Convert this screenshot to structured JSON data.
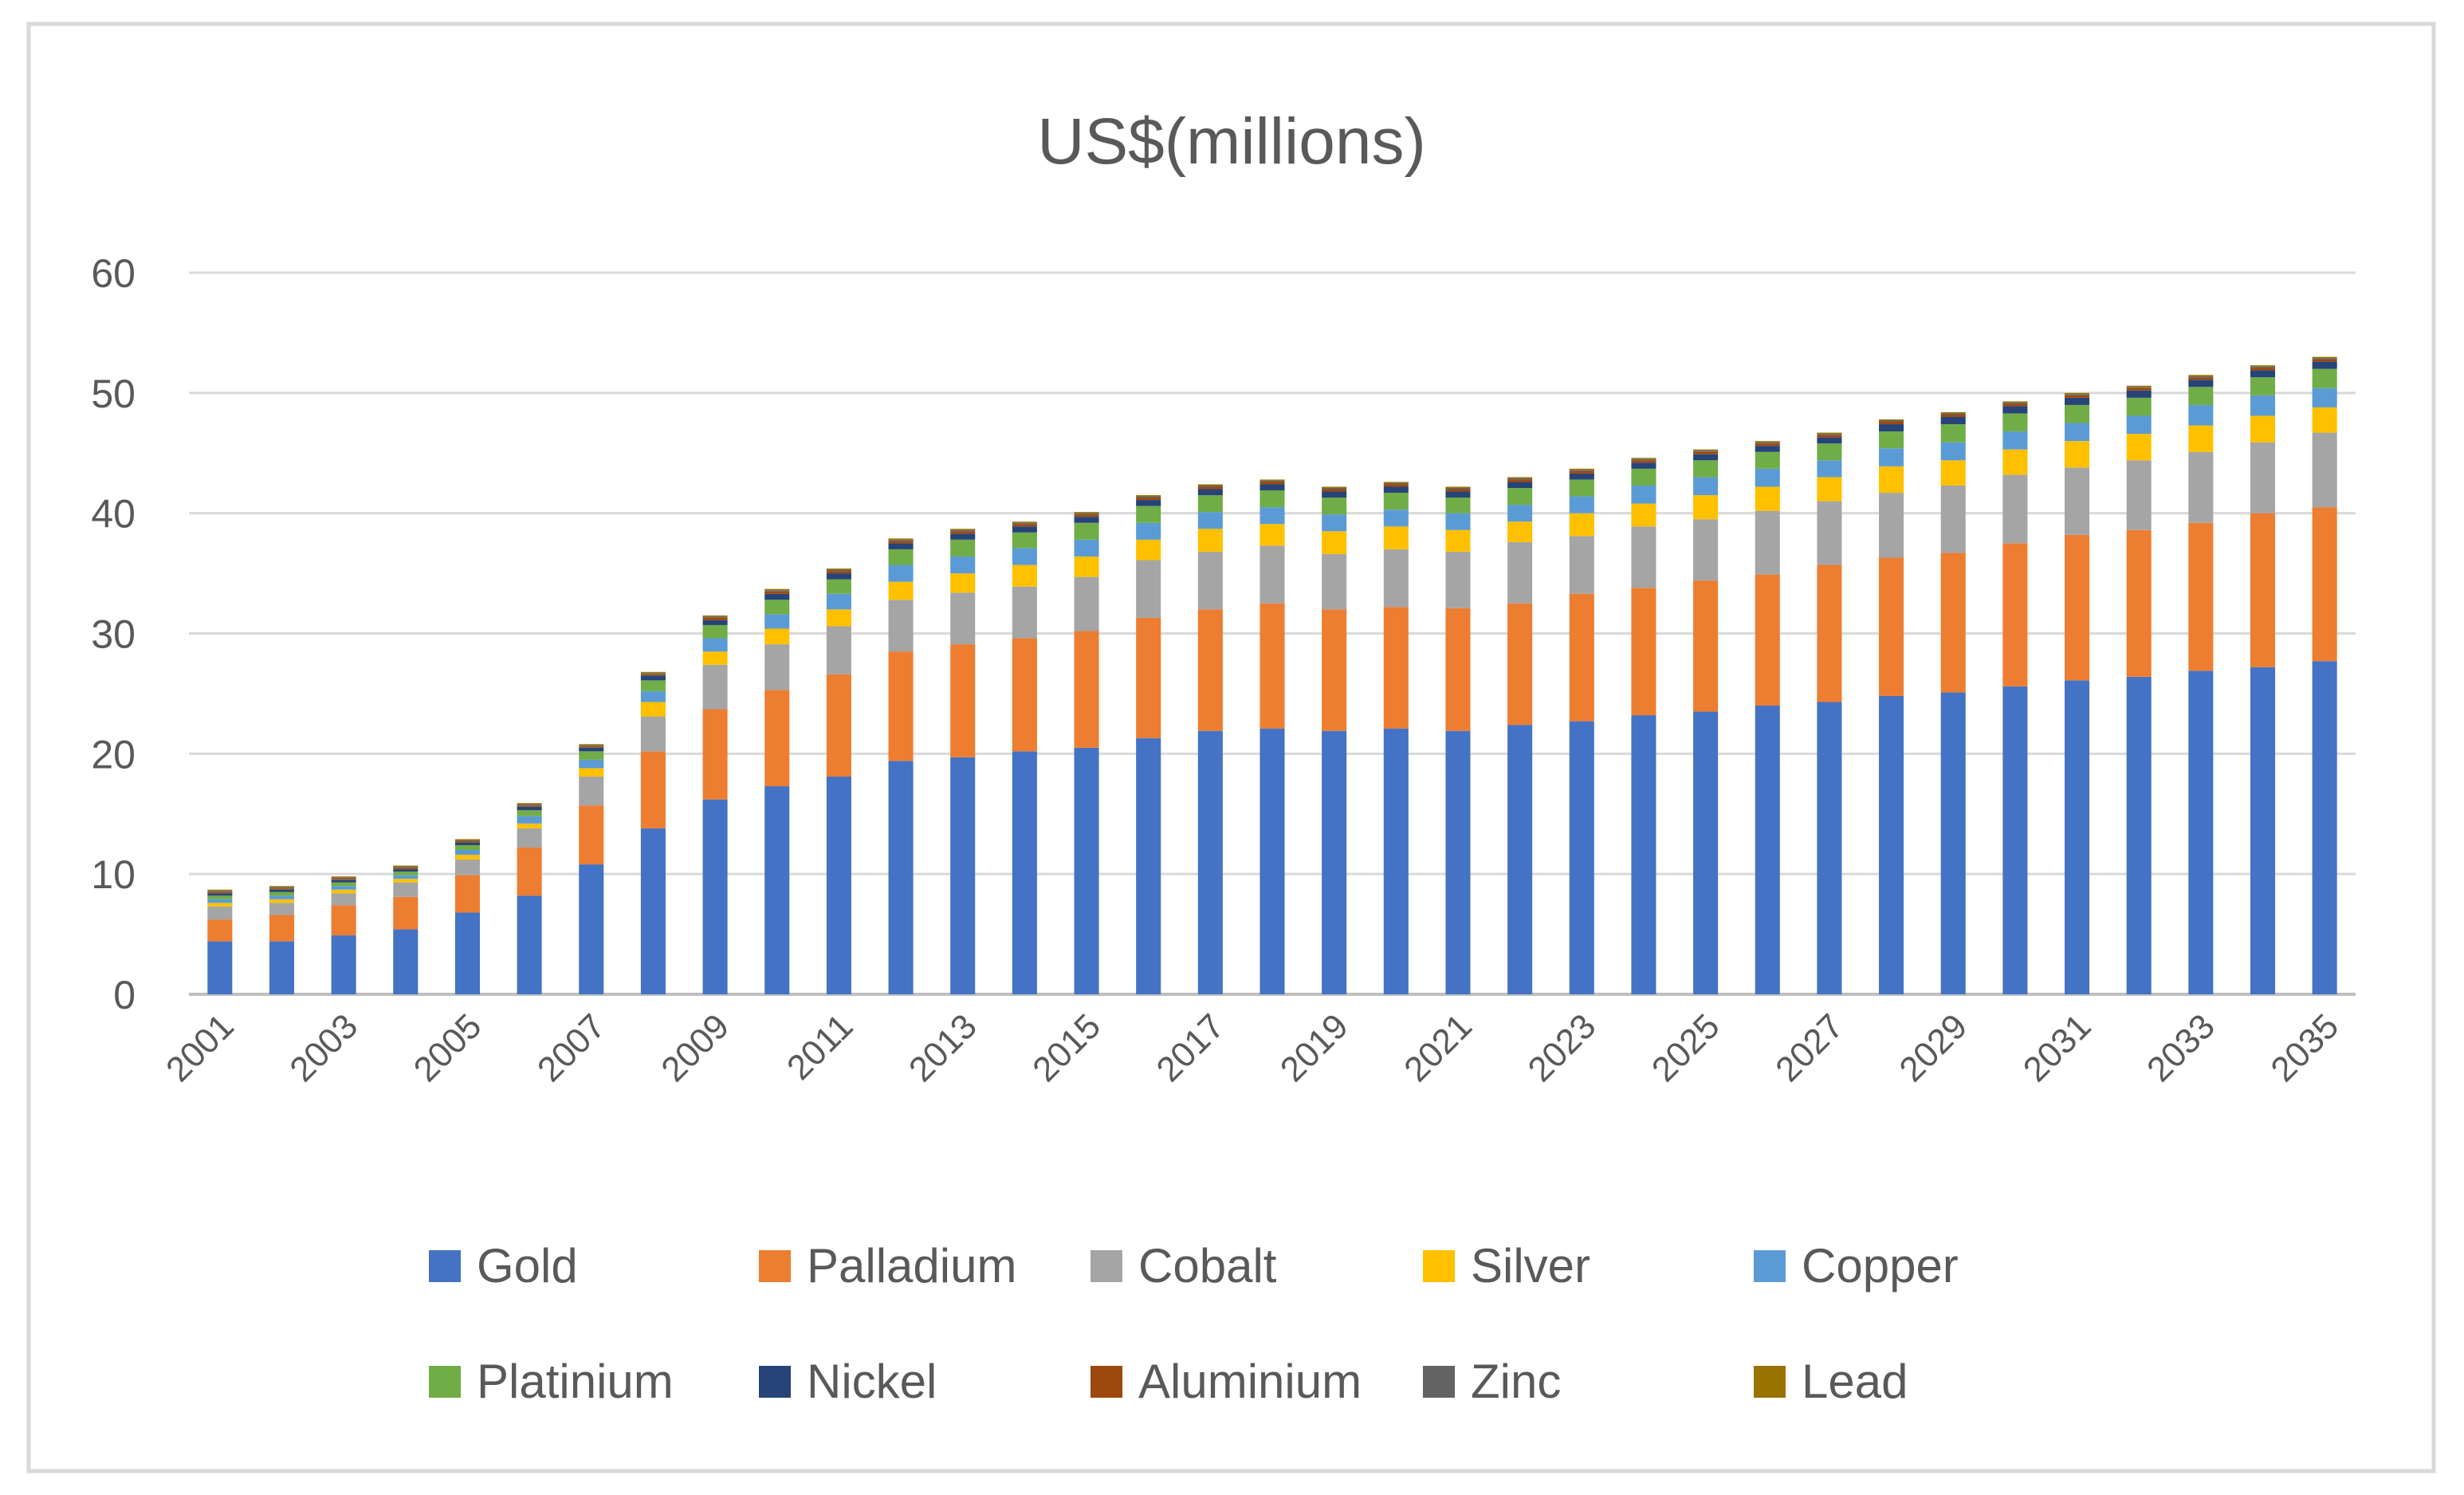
{
  "chart_data": {
    "type": "bar",
    "stacked": true,
    "title": "US$(millions)",
    "xlabel": "",
    "ylabel": "",
    "ylim": [
      0,
      60
    ],
    "yticks": [
      "0",
      "10",
      "20",
      "30",
      "40",
      "50",
      "60"
    ],
    "grid": true,
    "legend_position": "bottom",
    "categories": [
      "2001",
      "2002",
      "2003",
      "2004",
      "2005",
      "2006",
      "2007",
      "2008",
      "2009",
      "2010",
      "2011",
      "2012",
      "2013",
      "2014",
      "2015",
      "2016",
      "2017",
      "2018",
      "2019",
      "2020",
      "2021",
      "2022",
      "2023",
      "2024",
      "2025",
      "2026",
      "2027",
      "2028",
      "2029",
      "2030",
      "2031",
      "2032",
      "2033",
      "2034",
      "2035"
    ],
    "xtick_labels": [
      "2001",
      "2003",
      "2005",
      "2007",
      "2009",
      "2011",
      "2013",
      "2015",
      "2017",
      "2019",
      "2021",
      "2023",
      "2025",
      "2027",
      "2029",
      "2031",
      "2033",
      "2035"
    ],
    "series": [
      {
        "name": "Gold",
        "color": "#4472C4",
        "values": [
          4.4,
          4.4,
          4.9,
          5.4,
          6.8,
          8.2,
          10.8,
          13.8,
          16.2,
          17.3,
          18.1,
          19.4,
          19.7,
          20.2,
          20.5,
          21.3,
          21.9,
          22.1,
          21.9,
          22.1,
          21.9,
          22.4,
          22.7,
          23.2,
          23.5,
          24.0,
          24.3,
          24.8,
          25.1,
          25.6,
          26.1,
          26.4,
          26.9,
          27.2,
          27.7
        ]
      },
      {
        "name": "Palladium",
        "color": "#ED7D31",
        "values": [
          1.8,
          2.2,
          2.5,
          2.7,
          3.1,
          4.0,
          4.9,
          6.4,
          7.5,
          8.0,
          8.5,
          9.1,
          9.4,
          9.4,
          9.7,
          10.0,
          10.1,
          10.4,
          10.1,
          10.1,
          10.2,
          10.1,
          10.6,
          10.6,
          10.9,
          10.9,
          11.4,
          11.5,
          11.6,
          11.9,
          12.1,
          12.2,
          12.3,
          12.8,
          12.8
        ]
      },
      {
        "name": "Cobalt",
        "color": "#A5A5A5",
        "values": [
          1.1,
          1.0,
          1.0,
          1.2,
          1.3,
          1.6,
          2.4,
          2.9,
          3.7,
          3.8,
          4.0,
          4.3,
          4.3,
          4.3,
          4.5,
          4.8,
          4.8,
          4.8,
          4.6,
          4.8,
          4.7,
          5.1,
          4.8,
          5.1,
          5.1,
          5.3,
          5.3,
          5.4,
          5.6,
          5.7,
          5.6,
          5.8,
          5.9,
          5.9,
          6.2
        ]
      },
      {
        "name": "Silver",
        "color": "#FFC000",
        "values": [
          0.3,
          0.3,
          0.3,
          0.3,
          0.4,
          0.4,
          0.7,
          1.2,
          1.1,
          1.3,
          1.4,
          1.5,
          1.6,
          1.8,
          1.7,
          1.7,
          1.9,
          1.8,
          1.9,
          1.9,
          1.8,
          1.7,
          1.9,
          1.9,
          2.0,
          2.0,
          2.0,
          2.2,
          2.1,
          2.1,
          2.2,
          2.2,
          2.2,
          2.2,
          2.1
        ]
      },
      {
        "name": "Copper",
        "color": "#5B9BD5",
        "values": [
          0.3,
          0.3,
          0.3,
          0.3,
          0.4,
          0.6,
          0.7,
          0.9,
          1.1,
          1.2,
          1.3,
          1.4,
          1.4,
          1.4,
          1.4,
          1.4,
          1.4,
          1.4,
          1.4,
          1.4,
          1.4,
          1.4,
          1.4,
          1.5,
          1.5,
          1.5,
          1.4,
          1.5,
          1.5,
          1.5,
          1.5,
          1.5,
          1.7,
          1.7,
          1.6
        ]
      },
      {
        "name": "Platinium",
        "color": "#70AD47",
        "values": [
          0.3,
          0.3,
          0.3,
          0.3,
          0.4,
          0.5,
          0.7,
          0.9,
          1.1,
          1.2,
          1.2,
          1.3,
          1.4,
          1.3,
          1.4,
          1.4,
          1.4,
          1.4,
          1.4,
          1.4,
          1.3,
          1.4,
          1.4,
          1.4,
          1.4,
          1.4,
          1.4,
          1.4,
          1.5,
          1.5,
          1.5,
          1.5,
          1.5,
          1.5,
          1.6
        ]
      },
      {
        "name": "Nickel",
        "color": "#264478",
        "values": [
          0.2,
          0.2,
          0.2,
          0.2,
          0.2,
          0.3,
          0.3,
          0.4,
          0.4,
          0.5,
          0.5,
          0.5,
          0.5,
          0.5,
          0.5,
          0.5,
          0.5,
          0.5,
          0.5,
          0.5,
          0.5,
          0.5,
          0.5,
          0.5,
          0.5,
          0.5,
          0.5,
          0.6,
          0.6,
          0.6,
          0.6,
          0.6,
          0.6,
          0.6,
          0.6
        ]
      },
      {
        "name": "Aluminium",
        "color": "#9E480E",
        "values": [
          0.1,
          0.1,
          0.1,
          0.1,
          0.1,
          0.1,
          0.1,
          0.1,
          0.2,
          0.2,
          0.2,
          0.2,
          0.2,
          0.2,
          0.2,
          0.2,
          0.2,
          0.2,
          0.2,
          0.2,
          0.2,
          0.2,
          0.2,
          0.2,
          0.2,
          0.2,
          0.2,
          0.2,
          0.2,
          0.2,
          0.2,
          0.2,
          0.2,
          0.2,
          0.2
        ]
      },
      {
        "name": "Zinc",
        "color": "#636363",
        "values": [
          0.1,
          0.1,
          0.1,
          0.1,
          0.1,
          0.1,
          0.1,
          0.1,
          0.1,
          0.1,
          0.1,
          0.1,
          0.1,
          0.1,
          0.1,
          0.1,
          0.1,
          0.1,
          0.1,
          0.1,
          0.1,
          0.1,
          0.1,
          0.1,
          0.1,
          0.1,
          0.1,
          0.1,
          0.1,
          0.1,
          0.1,
          0.1,
          0.1,
          0.1,
          0.1
        ]
      },
      {
        "name": "Lead",
        "color": "#997300",
        "values": [
          0.1,
          0.1,
          0.1,
          0.1,
          0.1,
          0.1,
          0.1,
          0.1,
          0.1,
          0.1,
          0.1,
          0.1,
          0.1,
          0.1,
          0.1,
          0.1,
          0.1,
          0.1,
          0.1,
          0.1,
          0.1,
          0.1,
          0.1,
          0.1,
          0.1,
          0.1,
          0.1,
          0.1,
          0.1,
          0.1,
          0.1,
          0.1,
          0.1,
          0.1,
          0.1
        ]
      }
    ]
  }
}
